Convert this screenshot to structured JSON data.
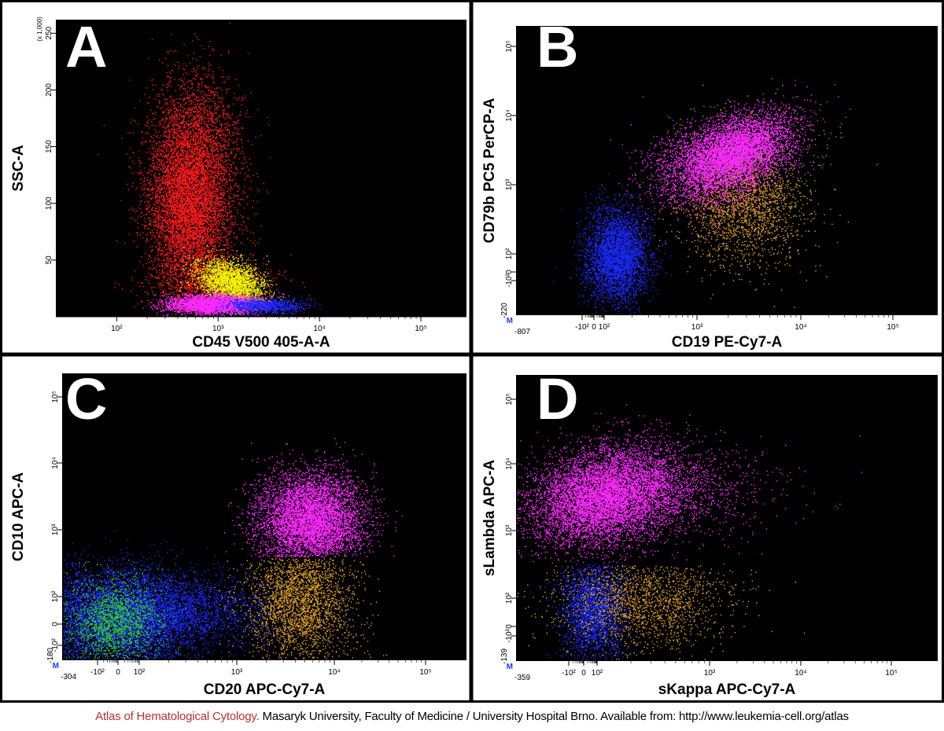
{
  "colors": {
    "red": "#ff1a1a",
    "yellow": "#f5f500",
    "magenta": "#ff2aff",
    "blue": "#1a2aff",
    "orange": "#e0a020",
    "green": "#30d030",
    "gate_marker": "#1e3cff",
    "caption_accent": "#b7332f"
  },
  "caption": {
    "atlas": "Atlas of Hematological Cytology.",
    "rest": " Masaryk University, Faculty of Medicine / University Hospital Brno. Available from: http://www.leukemia-cell.org/atlas"
  },
  "chart_data": [
    {
      "panel": "A",
      "type": "scatter",
      "xlabel": "CD45 V500 405-A-A",
      "ylabel": "SSC-A",
      "x_scale": "log",
      "y_scale": "linear",
      "y_multiplier": "(x 1,000)",
      "x_ticks": [
        "10²",
        "10³",
        "10⁴",
        "10⁵"
      ],
      "y_ticks": [
        "50",
        "100",
        "150",
        "200",
        "250"
      ],
      "grid": false,
      "populations": [
        {
          "color": "red",
          "x_center": 550,
          "y_center": 80,
          "x_spread_decades": 0.45,
          "y_range": [
            5,
            260
          ]
        },
        {
          "color": "yellow",
          "x_center": 1300,
          "y_center": 35,
          "x_spread_decades": 0.25,
          "y_range": [
            10,
            60
          ]
        },
        {
          "color": "magenta",
          "x_center": 900,
          "y_center": 12,
          "x_spread_decades": 0.3,
          "y_range": [
            2,
            25
          ]
        },
        {
          "color": "blue",
          "x_center": 3000,
          "y_center": 12,
          "x_spread_decades": 0.3,
          "y_range": [
            2,
            25
          ]
        }
      ]
    },
    {
      "panel": "B",
      "type": "scatter",
      "xlabel": "CD19 PE-Cy7-A",
      "ylabel": "CD79b PC5 PerCP-A",
      "x_scale": "biexponential",
      "y_scale": "biexponential",
      "x_ticks": [
        "-10²",
        "0",
        "10²",
        "10³",
        "10⁴",
        "10⁵"
      ],
      "y_ticks": [
        "-10²",
        "0",
        "10²",
        "10³",
        "10⁴",
        "10⁵"
      ],
      "x_min_label": "-807",
      "y_min_label": "-220",
      "gate_marker": "M",
      "grid": false,
      "populations": [
        {
          "color": "blue",
          "x_center": 30,
          "y_center": 80
        },
        {
          "color": "magenta",
          "x_center": 3000,
          "y_center": 3000
        },
        {
          "color": "orange",
          "x_center": 3500,
          "y_center": 500
        }
      ]
    },
    {
      "panel": "C",
      "type": "scatter",
      "xlabel": "CD20 APC-Cy7-A",
      "ylabel": "CD10 APC-A",
      "x_scale": "biexponential",
      "y_scale": "biexponential",
      "x_ticks": [
        "-10²",
        "0",
        "10²",
        "10³",
        "10⁴",
        "10⁵"
      ],
      "y_ticks": [
        "-10²",
        "0",
        "10²",
        "10³",
        "10⁴",
        "10⁵"
      ],
      "x_min_label": "-304",
      "y_min_label": "-180",
      "gate_marker": "M",
      "grid": false,
      "populations": [
        {
          "color": "blue",
          "x_center": 0,
          "y_center": 20
        },
        {
          "color": "green",
          "x_center": 0,
          "y_center": 20
        },
        {
          "color": "magenta",
          "x_center": 6000,
          "y_center": 1500
        },
        {
          "color": "orange",
          "x_center": 5500,
          "y_center": 200
        }
      ]
    },
    {
      "panel": "D",
      "type": "scatter",
      "xlabel": "sKappa APC-Cy7-A",
      "ylabel": "sLambda APC-A",
      "x_scale": "biexponential",
      "y_scale": "biexponential",
      "x_ticks": [
        "-10²",
        "0",
        "10²",
        "10³",
        "10⁴",
        "10⁵"
      ],
      "y_ticks": [
        "-10²",
        "0",
        "10²",
        "10³",
        "10⁴",
        "10⁵"
      ],
      "x_min_label": "-359",
      "y_min_label": "-139",
      "gate_marker": "M",
      "grid": false,
      "populations": [
        {
          "color": "magenta",
          "x_center": 100,
          "y_center": 3000
        },
        {
          "color": "blue",
          "x_center": 0,
          "y_center": 40
        },
        {
          "color": "orange",
          "x_center": 150,
          "y_center": 40
        }
      ]
    }
  ]
}
